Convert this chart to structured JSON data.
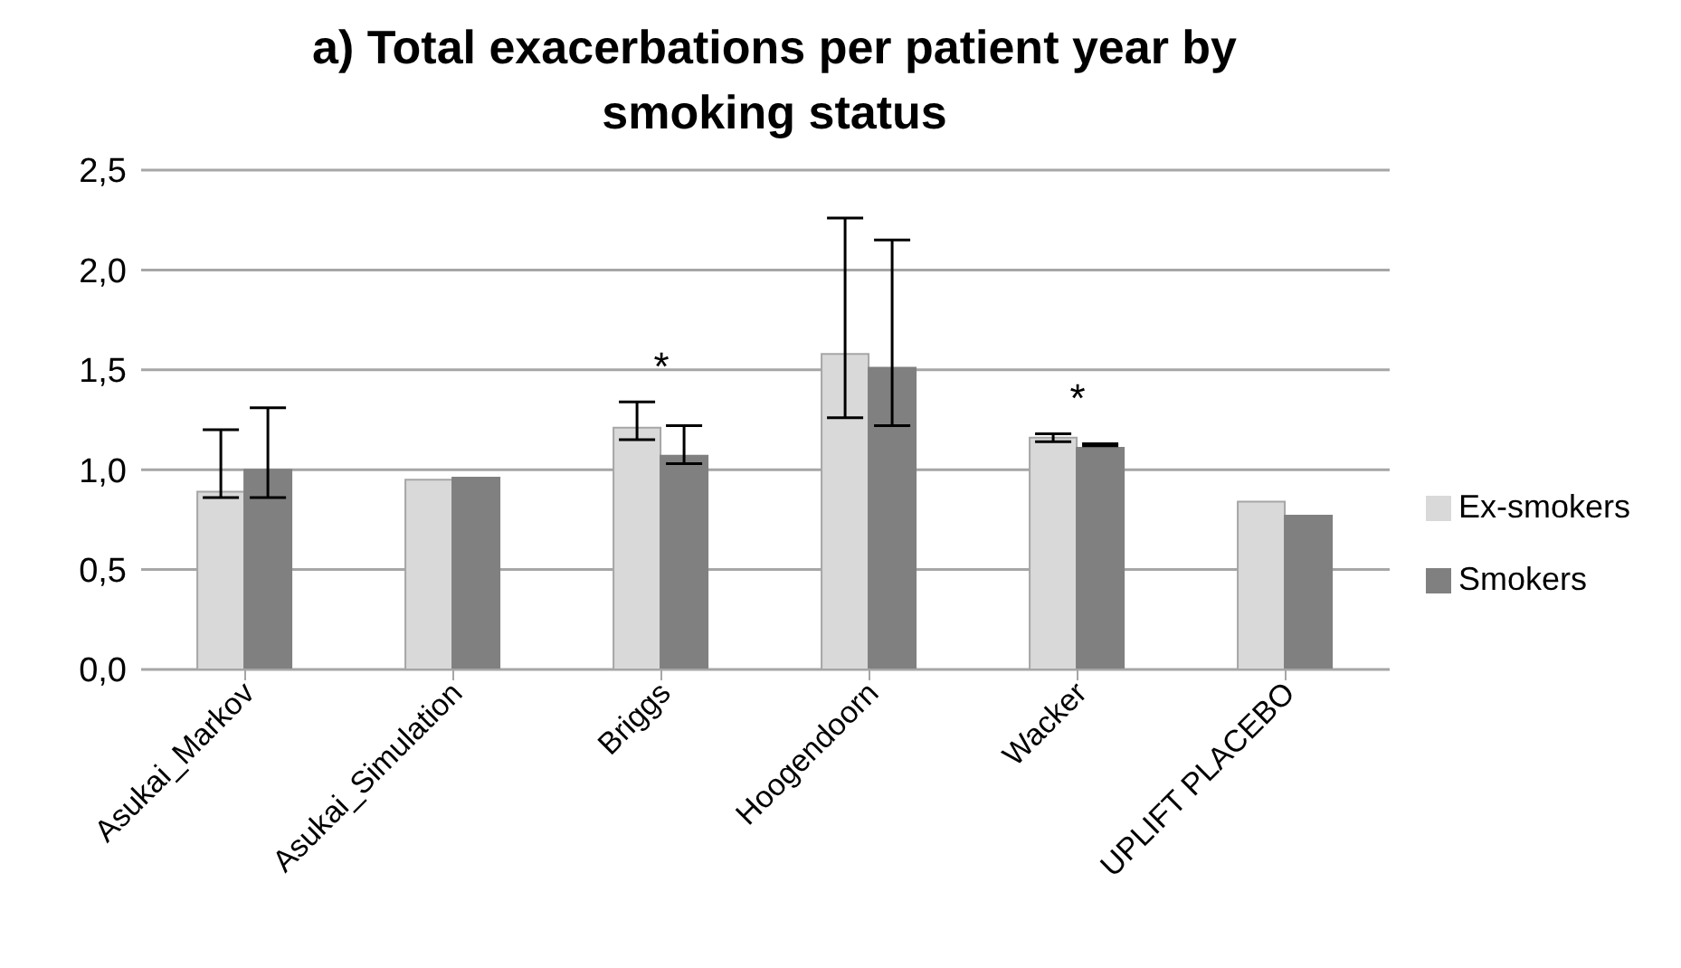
{
  "chart_data": {
    "type": "bar",
    "title": "a) Total exacerbations per patient year by smoking status",
    "categories": [
      "Asukai_Markov",
      "Asukai_Simulation",
      "Briggs",
      "Hoogendoorn",
      "Wacker",
      "UPLIFT PLACEBO"
    ],
    "series": [
      {
        "name": "Ex-smokers",
        "color": "#d9d9d9",
        "values": [
          0.89,
          0.95,
          1.21,
          1.58,
          1.16,
          0.84
        ],
        "errors": [
          [
            0.86,
            1.2
          ],
          null,
          [
            1.15,
            1.34
          ],
          [
            1.26,
            2.26
          ],
          [
            1.14,
            1.18
          ],
          null
        ]
      },
      {
        "name": "Smokers",
        "color": "#808080",
        "values": [
          1.0,
          0.96,
          1.07,
          1.51,
          1.11,
          0.77
        ],
        "errors": [
          [
            0.86,
            1.31
          ],
          null,
          [
            1.03,
            1.22
          ],
          [
            1.22,
            2.15
          ],
          [
            1.12,
            1.13
          ],
          null
        ]
      }
    ],
    "annotations": [
      {
        "text": "*",
        "x": "Briggs",
        "y": 1.34
      },
      {
        "text": "*",
        "x": "Wacker",
        "y": 1.18
      }
    ],
    "ylim": [
      0,
      2.5
    ],
    "yticks": [
      {
        "value": 0,
        "label": "0,0"
      },
      {
        "value": 0.5,
        "label": "0,5"
      },
      {
        "value": 1,
        "label": "1,0"
      },
      {
        "value": 1.5,
        "label": "1,5"
      },
      {
        "value": 2,
        "label": "2,0"
      },
      {
        "value": 2.5,
        "label": "2,5"
      }
    ],
    "grid": "y",
    "legend": "right"
  }
}
